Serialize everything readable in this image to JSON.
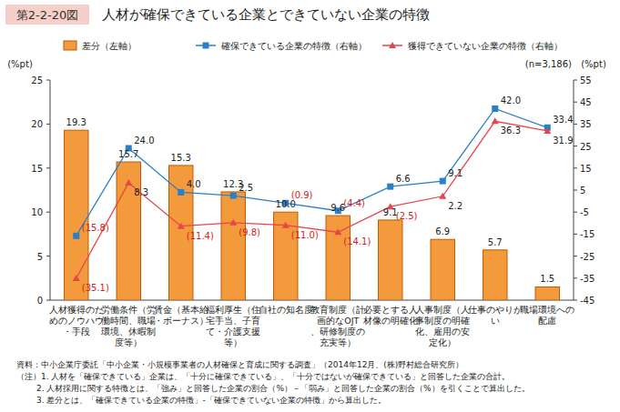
{
  "chart_data": {
    "type": "bar",
    "title": "人材が確保できている企業とできていない企業の特徴",
    "subtitle": "第2-2-20図",
    "y_label": "(%pt)",
    "y2_label": "(%pt)",
    "annotations": [
      "(n=3,186)",
      "資料：中小企業庁委託「中小企業・小規模事業者の人材確保と育成に関する調査」（2014年12月、(株)野村総合研究所）",
      "（注）1. 人材を「確保できている」企業は、「十分に確保できている」、「十分ではないが確保できている」と回答した企業の合計。",
      "2. 人材採用に関する特徴とは、「強み」と回答した企業の割合（%）－「弱み」と回答した企業の割合（%）を引くことで算出した。",
      "3. 差分とは、「確保できている企業の特徴」-「確保できていない企業の特徴」から算出した。"
    ],
    "categories": [
      "人材獲得のためのノウハウ・手段",
      "労働条件（労働時間、職場環境、休暇制度等）",
      "賃金（基本給・ボーナス）",
      "福利厚生（住宅手当、子育て・介護支援等）",
      "自社の知名度",
      "教育制度（計画的なOJT、研修制度の充実等）",
      "必要とする人材像の明確化",
      "人事制度（人事制度の明確化、雇用の安定化）",
      "仕事のやりがい",
      "職場環境への配慮"
    ],
    "series": [
      {
        "name": "差分（左軸）",
        "type": "bar",
        "color": "#f39a3c",
        "values": [
          19.3,
          15.7,
          15.3,
          12.3,
          10.0,
          9.6,
          9.1,
          6.9,
          5.7,
          1.5
        ],
        "value_labels": [
          "19.3",
          "15.7",
          "15.3",
          "12.3",
          "10.0",
          "9.6",
          "9.1",
          "6.9",
          "5.7",
          "1.5"
        ]
      },
      {
        "name": "確保できている企業の特徴（右軸）",
        "type": "line",
        "axis": "y2",
        "color": "#2a7fc9",
        "marker": "square",
        "values": [
          -15.8,
          24.0,
          4.0,
          2.5,
          -0.9,
          -4.4,
          6.6,
          9.1,
          42.0,
          33.4
        ],
        "value_labels": [
          "(15.8)",
          "24.0",
          "4.0",
          "2.5",
          "(0.9)",
          "(4.4)",
          "6.6",
          "9.1",
          "42.0",
          "33.4"
        ]
      },
      {
        "name": "獲得できていない企業の特徴（右軸）",
        "type": "line",
        "axis": "y2",
        "color": "#e8454a",
        "marker": "triangle",
        "values": [
          -35.1,
          8.3,
          -11.4,
          -9.8,
          -11.0,
          -14.1,
          -2.5,
          2.2,
          36.3,
          31.9
        ],
        "value_labels": [
          "(35.1)",
          "8.3",
          "(11.4)",
          "(9.8)",
          "(11.0)",
          "(14.1)",
          "(2.5)",
          "2.2",
          "36.3",
          "31.9"
        ]
      }
    ],
    "ylim": [
      0,
      25
    ],
    "yticks": [
      0,
      5,
      10,
      15,
      20,
      25
    ],
    "y2lim": [
      -45,
      55
    ],
    "y2ticks": [
      -45,
      -35,
      -25,
      -15,
      -5,
      5,
      15,
      25,
      35,
      45,
      55
    ],
    "grid": false,
    "legend": "top",
    "data_labels": true
  }
}
